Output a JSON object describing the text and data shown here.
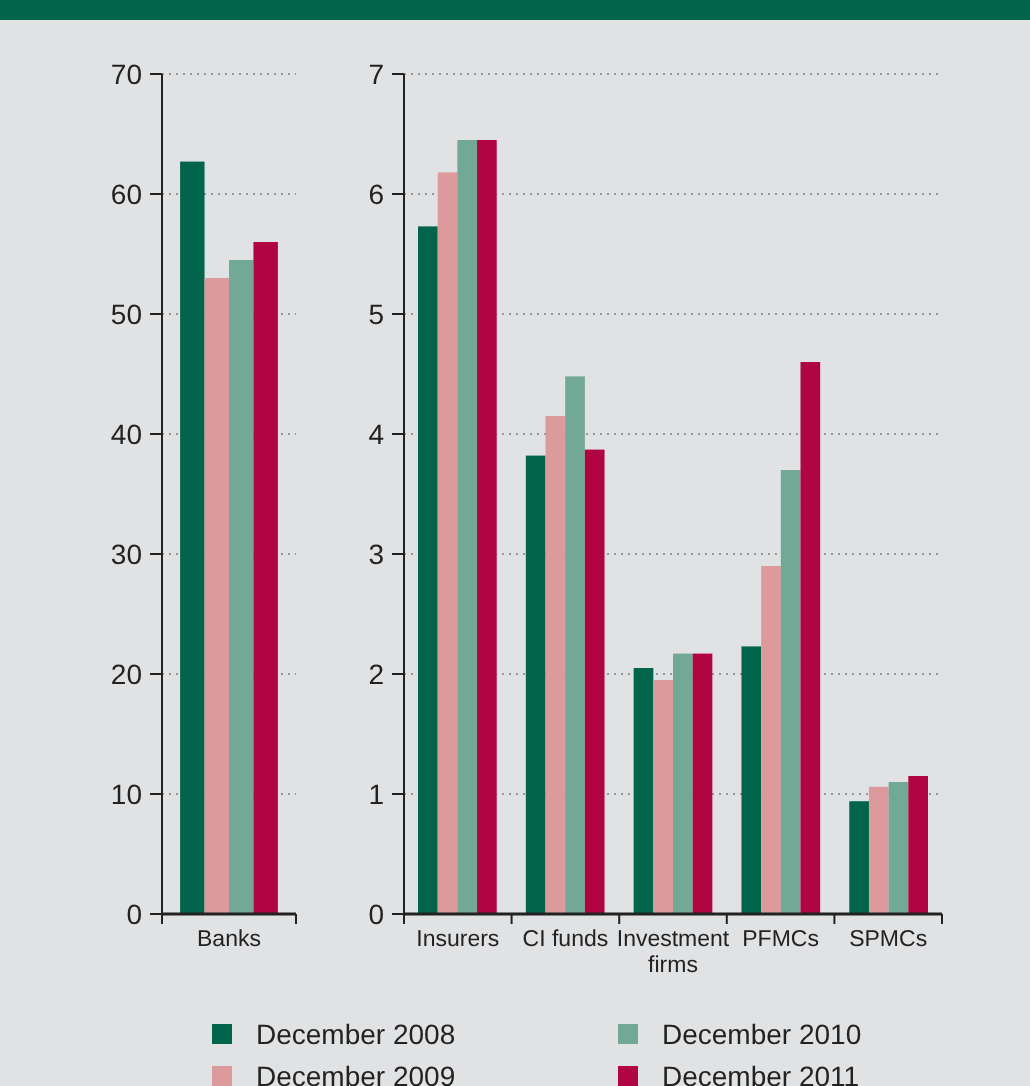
{
  "chart_data": [
    {
      "type": "bar",
      "categories": [
        "Banks"
      ],
      "series": [
        {
          "color": "#00654a",
          "values": [
            62.7
          ]
        },
        {
          "color": "#dd9a9c",
          "values": [
            53
          ]
        },
        {
          "color": "#72a896",
          "values": [
            54.5
          ]
        },
        {
          "color": "#b10542",
          "values": [
            56
          ]
        }
      ],
      "ylim": [
        0,
        70
      ],
      "yticks": [
        0,
        10,
        20,
        30,
        40,
        50,
        60,
        70
      ],
      "grid": "y"
    },
    {
      "type": "bar",
      "categories": [
        "Insurers",
        "CI funds",
        "Investment firms",
        "PFMCs",
        "SPMCs"
      ],
      "series": [
        {
          "name": "December 2008",
          "color": "#00654a",
          "values": [
            5.73,
            3.82,
            2.05,
            2.23,
            0.94
          ]
        },
        {
          "name": "December 2009",
          "color": "#dd9a9c",
          "values": [
            6.18,
            4.15,
            1.95,
            2.9,
            1.06
          ]
        },
        {
          "name": "December 2010",
          "color": "#72a896",
          "values": [
            6.45,
            4.48,
            2.17,
            3.7,
            1.1
          ]
        },
        {
          "name": "December 2011",
          "color": "#b10542",
          "values": [
            6.45,
            3.87,
            2.17,
            4.6,
            1.15
          ]
        }
      ],
      "ylim": [
        0,
        7
      ],
      "yticks": [
        0,
        1,
        2,
        3,
        4,
        5,
        6,
        7
      ],
      "grid": "y",
      "legend": "bottom"
    }
  ]
}
